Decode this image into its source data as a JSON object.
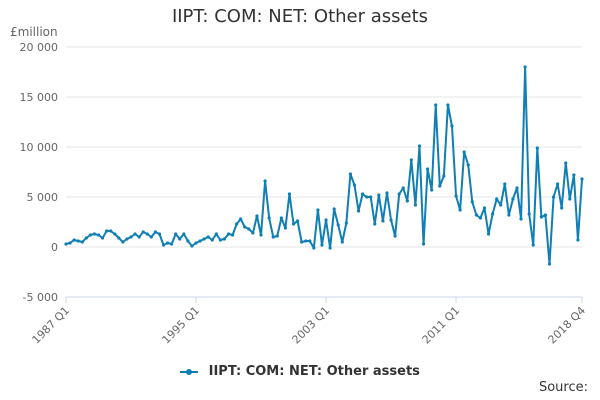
{
  "chart_data": {
    "type": "line",
    "title": "IIPT: COM: NET: Other assets",
    "unit_label": "£million",
    "xlabel": "",
    "ylabel": "",
    "ylim": [
      -5000,
      20000
    ],
    "y_ticks": [
      -5000,
      0,
      5000,
      10000,
      15000,
      20000
    ],
    "y_tick_labels": [
      "-5 000",
      "0",
      "5 000",
      "10 000",
      "15 000",
      "20 000"
    ],
    "x_start": "1987 Q1",
    "x_end": "2018 Q4",
    "x_tick_labels": [
      "1987 Q1",
      "1995 Q1",
      "2003 Q1",
      "2011 Q1",
      "2018 Q4"
    ],
    "grid": true,
    "legend_position": "bottom",
    "color": "#0f7fb4",
    "series": [
      {
        "name": "IIPT: COM: NET: Other assets",
        "values": [
          300,
          400,
          700,
          600,
          500,
          900,
          1200,
          1300,
          1200,
          900,
          1600,
          1600,
          1300,
          900,
          500,
          800,
          1000,
          1300,
          1000,
          1500,
          1300,
          1000,
          1500,
          1300,
          200,
          400,
          300,
          1300,
          800,
          1300,
          600,
          100,
          400,
          600,
          800,
          1000,
          700,
          1300,
          700,
          800,
          1300,
          1200,
          2300,
          2800,
          2000,
          1800,
          1400,
          3100,
          1200,
          6600,
          2900,
          1000,
          1100,
          2900,
          1900,
          5300,
          2300,
          2600,
          500,
          600,
          600,
          -100,
          3700,
          200,
          2700,
          -100,
          3800,
          2200,
          500,
          2400,
          7300,
          6200,
          3600,
          5300,
          5000,
          5000,
          2300,
          5200,
          2600,
          5400,
          2700,
          1100,
          5300,
          5900,
          4600,
          8700,
          4200,
          10100,
          300,
          7800,
          5700,
          14200,
          6100,
          7100,
          14200,
          12100,
          5100,
          3700,
          9500,
          8200,
          4500,
          3200,
          2900,
          3900,
          1300,
          3300,
          4800,
          4200,
          6300,
          3200,
          4800,
          5900,
          2800,
          18000,
          3300,
          200,
          9900,
          3000,
          3200,
          -1700,
          5000,
          6300,
          3900,
          8400,
          4800,
          7200,
          700,
          6800
        ]
      }
    ]
  },
  "legend": {
    "label": "IIPT: COM: NET: Other assets"
  },
  "source": {
    "label": "Source:"
  }
}
